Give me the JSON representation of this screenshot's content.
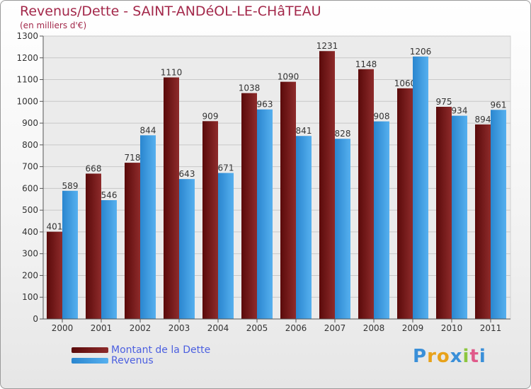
{
  "header": {
    "title": "Revenus/Dette - SAINT-ANDéOL-LE-CHâTEAU",
    "subtitle": "(en milliers d'€)"
  },
  "chart_data": {
    "type": "bar",
    "categories": [
      "2000",
      "2001",
      "2002",
      "2003",
      "2004",
      "2005",
      "2006",
      "2007",
      "2008",
      "2009",
      "2010",
      "2011"
    ],
    "series": [
      {
        "name": "Montant de la Dette",
        "color": "#7a1a1a",
        "values": [
          401,
          668,
          718,
          1110,
          909,
          1038,
          1090,
          1231,
          1148,
          1060,
          975,
          894
        ]
      },
      {
        "name": "Revenus",
        "color": "#3b9ae0",
        "values": [
          589,
          546,
          844,
          643,
          671,
          963,
          841,
          828,
          908,
          1206,
          934,
          961
        ]
      }
    ],
    "yticks": [
      0,
      100,
      200,
      300,
      400,
      500,
      600,
      700,
      800,
      900,
      1000,
      1100,
      1200,
      1300
    ],
    "ylim": [
      0,
      1300
    ],
    "grid": true,
    "legend_position": "bottom-left"
  },
  "legend": {
    "debt_label": "Montant de la Dette",
    "revenue_label": "Revenus"
  },
  "brand": {
    "logo_text": "Proxiti"
  }
}
